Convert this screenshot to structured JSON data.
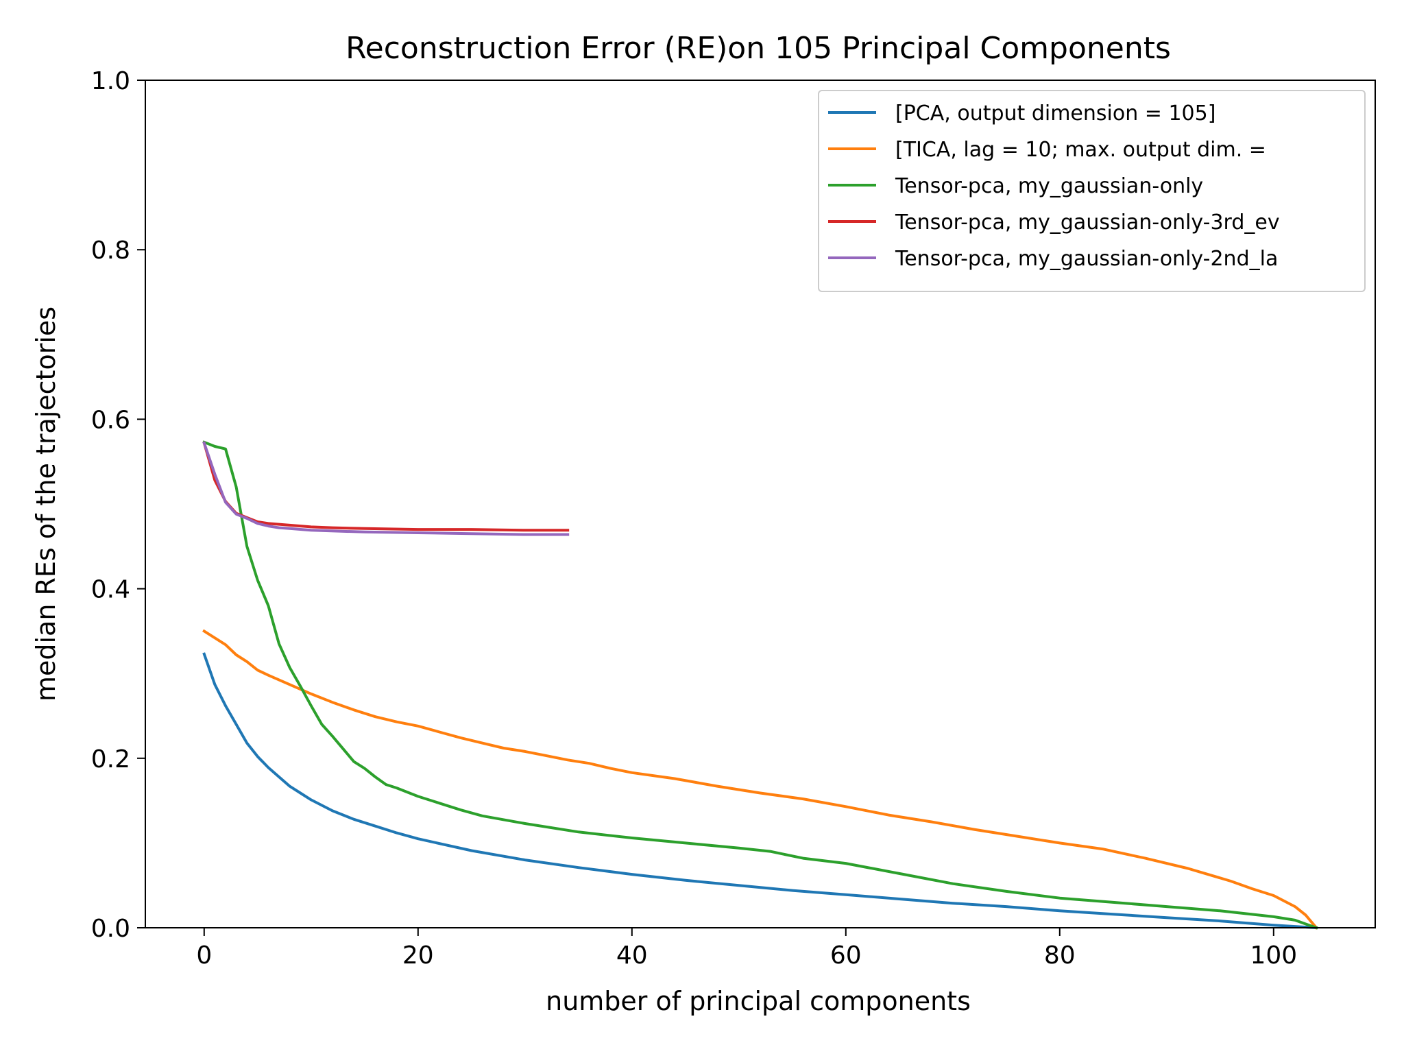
{
  "chart_data": {
    "type": "line",
    "title": "Reconstruction Error (RE)on 105 Principal Components",
    "xlabel": "number of principal components",
    "ylabel": "median REs of the trajectories",
    "xlim": [
      -5.5,
      109.5
    ],
    "ylim": [
      0.0,
      1.0
    ],
    "x_ticks": [
      0,
      20,
      40,
      60,
      80,
      100
    ],
    "y_ticks": [
      0.0,
      0.2,
      0.4,
      0.6,
      0.8,
      1.0
    ],
    "x_tick_labels": [
      "0",
      "20",
      "40",
      "60",
      "80",
      "100"
    ],
    "y_tick_labels": [
      "0.0",
      "0.2",
      "0.4",
      "0.6",
      "0.8",
      "1.0"
    ],
    "grid": false,
    "legend_position": "top-right",
    "series": [
      {
        "name": "[PCA, output dimension = 105]",
        "color": "#1f77b4",
        "points": [
          [
            0,
            0.323
          ],
          [
            1,
            0.287
          ],
          [
            2,
            0.262
          ],
          [
            3,
            0.24
          ],
          [
            4,
            0.218
          ],
          [
            5,
            0.202
          ],
          [
            6,
            0.189
          ],
          [
            7,
            0.178
          ],
          [
            8,
            0.167
          ],
          [
            9,
            0.159
          ],
          [
            10,
            0.151
          ],
          [
            12,
            0.138
          ],
          [
            14,
            0.128
          ],
          [
            16,
            0.12
          ],
          [
            18,
            0.112
          ],
          [
            20,
            0.105
          ],
          [
            25,
            0.091
          ],
          [
            30,
            0.08
          ],
          [
            35,
            0.071
          ],
          [
            40,
            0.063
          ],
          [
            45,
            0.056
          ],
          [
            50,
            0.05
          ],
          [
            55,
            0.044
          ],
          [
            60,
            0.039
          ],
          [
            65,
            0.034
          ],
          [
            70,
            0.029
          ],
          [
            75,
            0.025
          ],
          [
            80,
            0.02
          ],
          [
            85,
            0.016
          ],
          [
            90,
            0.012
          ],
          [
            95,
            0.008
          ],
          [
            100,
            0.003
          ],
          [
            104,
            0.0
          ]
        ]
      },
      {
        "name": "[TICA, lag = 10; max. output dim. =",
        "color": "#ff7f0e",
        "points": [
          [
            0,
            0.35
          ],
          [
            2,
            0.334
          ],
          [
            3,
            0.322
          ],
          [
            4,
            0.314
          ],
          [
            5,
            0.304
          ],
          [
            6,
            0.298
          ],
          [
            8,
            0.287
          ],
          [
            10,
            0.276
          ],
          [
            12,
            0.266
          ],
          [
            14,
            0.257
          ],
          [
            16,
            0.249
          ],
          [
            18,
            0.243
          ],
          [
            20,
            0.238
          ],
          [
            22,
            0.231
          ],
          [
            24,
            0.224
          ],
          [
            26,
            0.218
          ],
          [
            28,
            0.212
          ],
          [
            30,
            0.208
          ],
          [
            32,
            0.203
          ],
          [
            34,
            0.198
          ],
          [
            36,
            0.194
          ],
          [
            38,
            0.188
          ],
          [
            40,
            0.183
          ],
          [
            44,
            0.176
          ],
          [
            48,
            0.167
          ],
          [
            52,
            0.159
          ],
          [
            56,
            0.152
          ],
          [
            60,
            0.143
          ],
          [
            64,
            0.133
          ],
          [
            68,
            0.125
          ],
          [
            72,
            0.116
          ],
          [
            76,
            0.108
          ],
          [
            80,
            0.1
          ],
          [
            84,
            0.093
          ],
          [
            88,
            0.082
          ],
          [
            92,
            0.07
          ],
          [
            96,
            0.055
          ],
          [
            98,
            0.046
          ],
          [
            100,
            0.038
          ],
          [
            102,
            0.025
          ],
          [
            103,
            0.015
          ],
          [
            104,
            0.0
          ]
        ]
      },
      {
        "name": "Tensor-pca, my_gaussian-only",
        "color": "#2ca02c",
        "points": [
          [
            0,
            0.573
          ],
          [
            1,
            0.568
          ],
          [
            2,
            0.565
          ],
          [
            3,
            0.52
          ],
          [
            4,
            0.45
          ],
          [
            5,
            0.41
          ],
          [
            6,
            0.38
          ],
          [
            7,
            0.335
          ],
          [
            8,
            0.307
          ],
          [
            9,
            0.285
          ],
          [
            10,
            0.262
          ],
          [
            11,
            0.24
          ],
          [
            12,
            0.226
          ],
          [
            13,
            0.211
          ],
          [
            14,
            0.196
          ],
          [
            15,
            0.188
          ],
          [
            16,
            0.178
          ],
          [
            17,
            0.169
          ],
          [
            18,
            0.165
          ],
          [
            20,
            0.155
          ],
          [
            22,
            0.147
          ],
          [
            24,
            0.139
          ],
          [
            26,
            0.132
          ],
          [
            30,
            0.123
          ],
          [
            35,
            0.113
          ],
          [
            40,
            0.106
          ],
          [
            45,
            0.1
          ],
          [
            50,
            0.094
          ],
          [
            53,
            0.09
          ],
          [
            56,
            0.082
          ],
          [
            60,
            0.076
          ],
          [
            65,
            0.064
          ],
          [
            70,
            0.052
          ],
          [
            75,
            0.043
          ],
          [
            80,
            0.035
          ],
          [
            85,
            0.03
          ],
          [
            90,
            0.025
          ],
          [
            95,
            0.02
          ],
          [
            100,
            0.013
          ],
          [
            102,
            0.009
          ],
          [
            104,
            0.0
          ]
        ]
      },
      {
        "name": "Tensor-pca, my_gaussian-only-3rd_ev",
        "color": "#d62728",
        "points": [
          [
            0,
            0.572
          ],
          [
            1,
            0.528
          ],
          [
            2,
            0.503
          ],
          [
            3,
            0.489
          ],
          [
            4,
            0.484
          ],
          [
            5,
            0.479
          ],
          [
            6,
            0.477
          ],
          [
            8,
            0.475
          ],
          [
            10,
            0.473
          ],
          [
            12,
            0.472
          ],
          [
            15,
            0.471
          ],
          [
            20,
            0.47
          ],
          [
            25,
            0.47
          ],
          [
            30,
            0.469
          ],
          [
            34,
            0.469
          ]
        ]
      },
      {
        "name": "Tensor-pca, my_gaussian-only-2nd_la",
        "color": "#9467bd",
        "points": [
          [
            0,
            0.572
          ],
          [
            1,
            0.535
          ],
          [
            2,
            0.502
          ],
          [
            3,
            0.488
          ],
          [
            4,
            0.483
          ],
          [
            5,
            0.477
          ],
          [
            6,
            0.474
          ],
          [
            7,
            0.472
          ],
          [
            8,
            0.471
          ],
          [
            10,
            0.469
          ],
          [
            15,
            0.467
          ],
          [
            20,
            0.466
          ],
          [
            25,
            0.465
          ],
          [
            30,
            0.464
          ],
          [
            34,
            0.464
          ]
        ]
      }
    ]
  }
}
